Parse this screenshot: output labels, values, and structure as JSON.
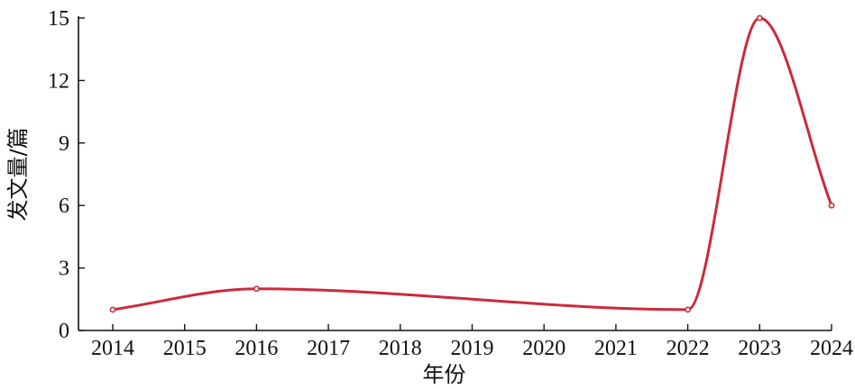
{
  "chart_data": {
    "type": "line",
    "xlabel": "年份",
    "ylabel": "发文量/篇",
    "x": [
      "2014",
      "2015",
      "2016",
      "2017",
      "2018",
      "2019",
      "2020",
      "2021",
      "2022",
      "2023",
      "2024"
    ],
    "series": [
      {
        "values": [
          1,
          null,
          2,
          null,
          null,
          null,
          null,
          null,
          1,
          15,
          6
        ]
      }
    ],
    "yticks": [
      0,
      3,
      6,
      9,
      12,
      15
    ],
    "ylim": [
      0,
      15
    ],
    "grid": false,
    "line_color": "#cc2a3c",
    "smooth": true
  }
}
